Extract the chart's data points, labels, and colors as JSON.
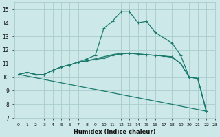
{
  "xlabel": "Humidex (Indice chaleur)",
  "background_color": "#cce8e8",
  "grid_color": "#aacccc",
  "line_color": "#1a7a6e",
  "xlim": [
    -0.5,
    23
  ],
  "ylim": [
    7,
    15.5
  ],
  "xticks": [
    0,
    1,
    2,
    3,
    4,
    5,
    6,
    7,
    8,
    9,
    10,
    11,
    12,
    13,
    14,
    15,
    16,
    17,
    18,
    19,
    20,
    21,
    22,
    23
  ],
  "yticks": [
    7,
    8,
    9,
    10,
    11,
    12,
    13,
    14,
    15
  ],
  "lines": [
    {
      "x": [
        0,
        22
      ],
      "y": [
        10.2,
        7.5
      ],
      "style": "-",
      "marker": null
    },
    {
      "x": [
        0,
        1,
        2,
        3,
        4,
        5,
        6,
        7,
        8,
        9,
        10,
        11,
        12,
        13,
        14,
        15,
        16,
        17,
        18,
        19,
        20,
        21,
        22
      ],
      "y": [
        10.2,
        10.35,
        10.2,
        10.2,
        10.5,
        10.75,
        10.9,
        11.1,
        11.35,
        11.6,
        13.6,
        14.1,
        14.8,
        14.8,
        14.0,
        14.1,
        13.3,
        12.9,
        12.5,
        11.6,
        10.0,
        9.9,
        7.5
      ],
      "style": "-",
      "marker": "+"
    },
    {
      "x": [
        0,
        1,
        2,
        3,
        4,
        5,
        6,
        7,
        8,
        9,
        10,
        11,
        12,
        13,
        14,
        15,
        16,
        17,
        18,
        19,
        20,
        21,
        22
      ],
      "y": [
        10.2,
        10.35,
        10.2,
        10.2,
        10.5,
        10.75,
        10.9,
        11.1,
        11.2,
        11.3,
        11.4,
        11.6,
        11.7,
        11.75,
        11.7,
        11.65,
        11.6,
        11.55,
        11.5,
        11.0,
        10.0,
        9.9,
        7.5
      ],
      "style": "-",
      "marker": "+"
    },
    {
      "x": [
        0,
        1,
        2,
        3,
        4,
        5,
        6,
        7,
        8,
        9,
        10,
        11,
        12,
        13,
        14,
        15,
        16,
        17,
        18,
        19,
        20,
        21,
        22
      ],
      "y": [
        10.2,
        10.35,
        10.2,
        10.2,
        10.5,
        10.75,
        10.9,
        11.1,
        11.2,
        11.35,
        11.5,
        11.65,
        11.75,
        11.75,
        11.7,
        11.65,
        11.6,
        11.55,
        11.45,
        11.0,
        10.0,
        9.9,
        7.5
      ],
      "style": "-",
      "marker": null
    }
  ]
}
